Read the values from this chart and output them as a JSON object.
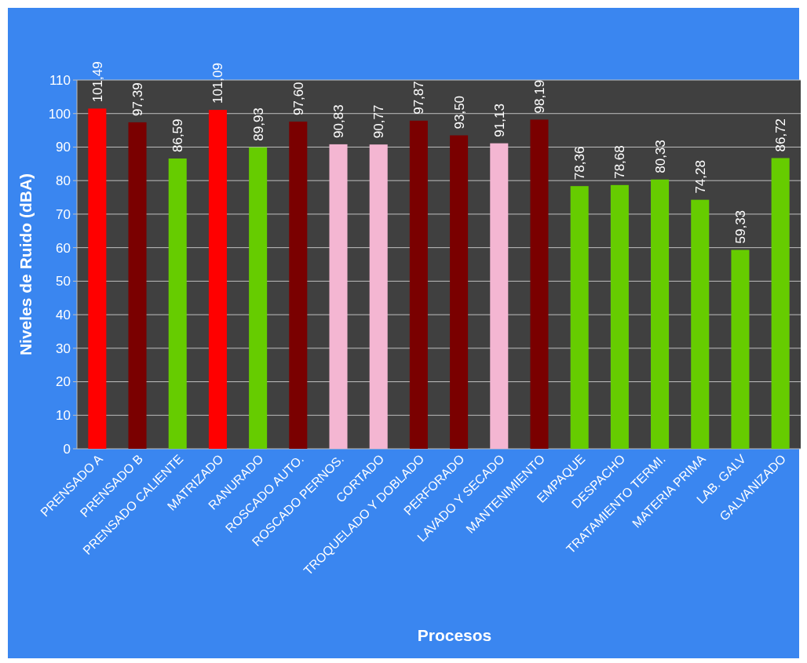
{
  "chart_data": {
    "type": "bar",
    "xlabel": "Procesos",
    "ylabel": "Niveles de Ruido (dBA)",
    "categories": [
      "PRENSADO A",
      "PRENSADO B",
      "PRENSADO CALIENTE",
      "MATRIZADO",
      "RANURADO",
      "ROSCADO AUTO.",
      "ROSCADO PERNOS.",
      "CORTADO",
      "TROQUELADO Y DOBLADO",
      "PERFORADO",
      "LAVADO Y SECADO",
      "MANTENIMIENTO",
      "EMPAQUE",
      "DESPACHO",
      "TRATAMIENTO TERMI.",
      "MATERIA PRIMA",
      "LAB. GALV",
      "GALVANIZADO"
    ],
    "values": [
      101.49,
      97.39,
      86.59,
      101.09,
      89.93,
      97.6,
      90.83,
      90.77,
      97.87,
      93.5,
      91.13,
      98.19,
      78.36,
      78.68,
      80.33,
      74.28,
      59.33,
      86.72
    ],
    "value_labels": [
      "101,49",
      "97,39",
      "86,59",
      "101,09",
      "89,93",
      "97,60",
      "90,83",
      "90,77",
      "97,87",
      "93,50",
      "91,13",
      "98,19",
      "78,36",
      "78,68",
      "80,33",
      "74,28",
      "59,33",
      "86,72"
    ],
    "colors": [
      "#ff0000",
      "#7a0000",
      "#66cc00",
      "#ff0000",
      "#66cc00",
      "#7a0000",
      "#f4b6d2",
      "#f4b6d2",
      "#7a0000",
      "#7a0000",
      "#f4b6d2",
      "#7a0000",
      "#66cc00",
      "#66cc00",
      "#66cc00",
      "#66cc00",
      "#66cc00",
      "#66cc00"
    ],
    "ylim": [
      0,
      110
    ],
    "yticks": [
      0,
      10,
      20,
      30,
      40,
      50,
      60,
      70,
      80,
      90,
      100,
      110
    ],
    "grid": "y"
  }
}
